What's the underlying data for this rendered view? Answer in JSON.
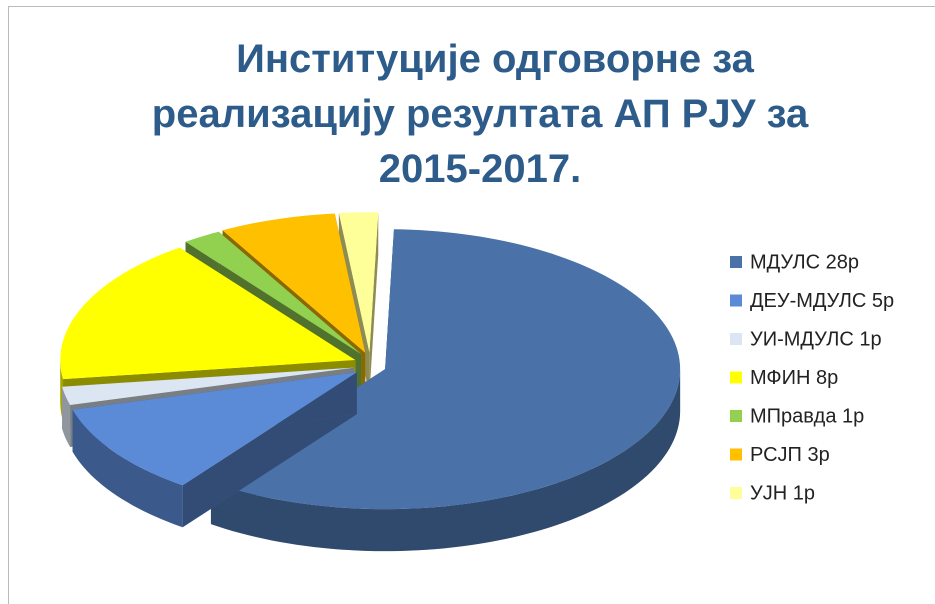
{
  "chart_data": {
    "type": "pie",
    "title": [
      "Институције одговорне за",
      "реализацију резултата АП РЈУ за",
      "2015-2017."
    ],
    "categories": [
      "МДУЛС 28р",
      "ДЕУ-МДУЛС 5р",
      "УИ-МДУЛС 1р",
      "МФИН 8р",
      "МПравда 1р",
      "РСЈП 3р",
      "УЈН 1р"
    ],
    "values": [
      28,
      5,
      1,
      8,
      1,
      3,
      1
    ],
    "colors": [
      "#4a72a8",
      "#5b8bd6",
      "#dce6f2",
      "#ffff00",
      "#92d050",
      "#ffc000",
      "#ffff99"
    ],
    "legend": "right"
  }
}
